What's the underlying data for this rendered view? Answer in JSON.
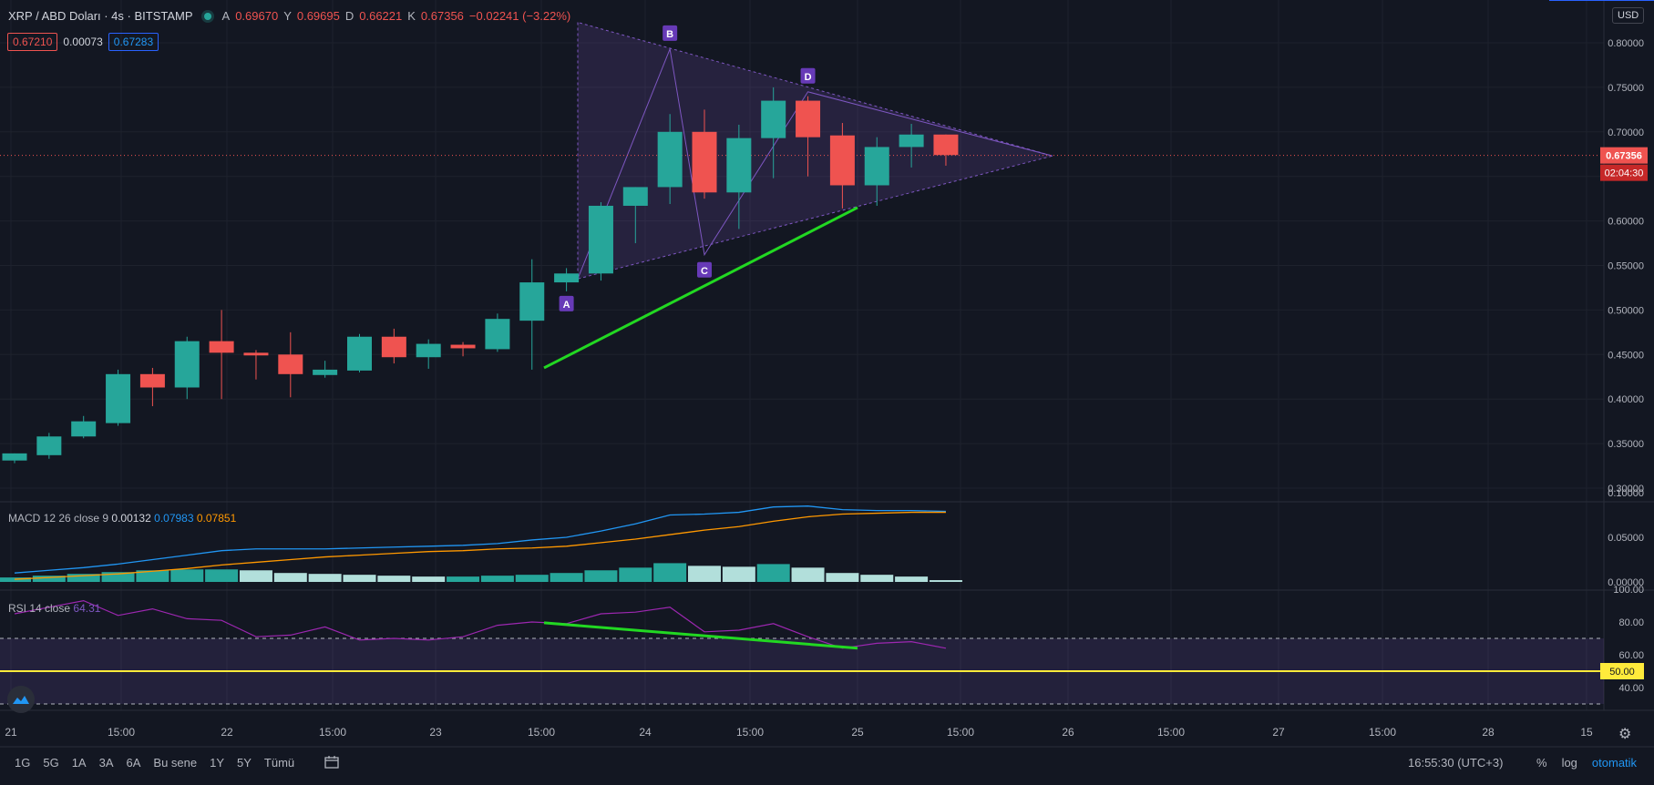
{
  "header": {
    "symbol": "XRP / ABD Doları · 4s · BITSTAMP",
    "o_label": "A",
    "o_value": "0.69670",
    "h_label": "Y",
    "h_value": "0.69695",
    "l_label": "D",
    "l_value": "0.66221",
    "c_label": "K",
    "c_value": "0.67356",
    "change": "−0.02241 (−3.22%)"
  },
  "bid": "0.67210",
  "spread": "0.00073",
  "ask": "0.67283",
  "currency": "USD",
  "current_price_label": "0.67356",
  "countdown": "02:04:30",
  "macd": {
    "label": "MACD 12 26 close 9",
    "v1": "0.00132",
    "v2": "0.07983",
    "v3": "0.07851"
  },
  "rsi": {
    "label": "RSI 14 close",
    "value": "64.31",
    "mid_label": "50.00"
  },
  "colors": {
    "up": "#26a69a",
    "down": "#ef5350",
    "bg": "#131722",
    "pattern": "#7e57c2",
    "trend": "#22d822"
  },
  "timeframes": [
    "1G",
    "5G",
    "1A",
    "3A",
    "6A",
    "Bu sene",
    "1Y",
    "5Y",
    "Tümü"
  ],
  "clock": "16:55:30 (UTC+3)",
  "options": {
    "percent": "%",
    "log": "log",
    "auto": "otomatik"
  },
  "chart_data": {
    "type": "candlestick",
    "x_labels": [
      "21",
      "15:00",
      "22",
      "15:00",
      "23",
      "15:00",
      "24",
      "15:00",
      "25",
      "15:00",
      "26",
      "15:00",
      "27",
      "15:00",
      "28",
      "15"
    ],
    "price_axis": [
      "0.80000",
      "0.75000",
      "0.70000",
      "0.65000",
      "0.60000",
      "0.55000",
      "0.50000",
      "0.45000",
      "0.40000",
      "0.35000",
      "0.30000"
    ],
    "ylim": [
      0.28,
      0.82
    ],
    "candles": [
      {
        "o": 0.331,
        "h": 0.339,
        "l": 0.328,
        "c": 0.339
      },
      {
        "o": 0.337,
        "h": 0.362,
        "l": 0.333,
        "c": 0.358
      },
      {
        "o": 0.358,
        "h": 0.381,
        "l": 0.356,
        "c": 0.375
      },
      {
        "o": 0.373,
        "h": 0.433,
        "l": 0.37,
        "c": 0.428
      },
      {
        "o": 0.428,
        "h": 0.435,
        "l": 0.392,
        "c": 0.413
      },
      {
        "o": 0.413,
        "h": 0.47,
        "l": 0.4,
        "c": 0.465
      },
      {
        "o": 0.465,
        "h": 0.5,
        "l": 0.4,
        "c": 0.452
      },
      {
        "o": 0.452,
        "h": 0.455,
        "l": 0.422,
        "c": 0.449
      },
      {
        "o": 0.45,
        "h": 0.475,
        "l": 0.402,
        "c": 0.428
      },
      {
        "o": 0.427,
        "h": 0.443,
        "l": 0.424,
        "c": 0.433
      },
      {
        "o": 0.432,
        "h": 0.473,
        "l": 0.43,
        "c": 0.47
      },
      {
        "o": 0.47,
        "h": 0.479,
        "l": 0.44,
        "c": 0.447
      },
      {
        "o": 0.447,
        "h": 0.467,
        "l": 0.434,
        "c": 0.462
      },
      {
        "o": 0.461,
        "h": 0.464,
        "l": 0.448,
        "c": 0.457
      },
      {
        "o": 0.456,
        "h": 0.496,
        "l": 0.453,
        "c": 0.49
      },
      {
        "o": 0.488,
        "h": 0.557,
        "l": 0.433,
        "c": 0.531
      },
      {
        "o": 0.531,
        "h": 0.547,
        "l": 0.521,
        "c": 0.541
      },
      {
        "o": 0.541,
        "h": 0.621,
        "l": 0.533,
        "c": 0.617
      },
      {
        "o": 0.617,
        "h": 0.638,
        "l": 0.575,
        "c": 0.638
      },
      {
        "o": 0.638,
        "h": 0.72,
        "l": 0.619,
        "c": 0.7
      },
      {
        "o": 0.7,
        "h": 0.725,
        "l": 0.625,
        "c": 0.632
      },
      {
        "o": 0.632,
        "h": 0.708,
        "l": 0.591,
        "c": 0.693
      },
      {
        "o": 0.693,
        "h": 0.75,
        "l": 0.648,
        "c": 0.735
      },
      {
        "o": 0.735,
        "h": 0.74,
        "l": 0.65,
        "c": 0.694
      },
      {
        "o": 0.696,
        "h": 0.71,
        "l": 0.614,
        "c": 0.64
      },
      {
        "o": 0.64,
        "h": 0.694,
        "l": 0.617,
        "c": 0.683
      },
      {
        "o": 0.683,
        "h": 0.709,
        "l": 0.66,
        "c": 0.697
      },
      {
        "o": 0.697,
        "h": 0.697,
        "l": 0.662,
        "c": 0.674
      }
    ],
    "pattern_points": [
      {
        "label": "A",
        "candle": 16,
        "price": 0.524
      },
      {
        "label": "B",
        "candle": 19,
        "price": 0.793
      },
      {
        "label": "C",
        "candle": 20,
        "price": 0.562
      },
      {
        "label": "D",
        "candle": 23,
        "price": 0.745
      }
    ],
    "macd": {
      "ylim": [
        0,
        0.1
      ],
      "axis": [
        "0.10000",
        "0.05000",
        "0.00000"
      ],
      "macd_line": [
        0.01,
        0.013,
        0.016,
        0.02,
        0.025,
        0.03,
        0.035,
        0.037,
        0.037,
        0.037,
        0.038,
        0.039,
        0.04,
        0.041,
        0.043,
        0.047,
        0.05,
        0.057,
        0.065,
        0.075,
        0.076,
        0.078,
        0.084,
        0.085,
        0.081,
        0.08,
        0.08,
        0.079
      ],
      "signal_line": [
        0.003,
        0.005,
        0.007,
        0.009,
        0.012,
        0.015,
        0.019,
        0.022,
        0.025,
        0.028,
        0.03,
        0.032,
        0.034,
        0.035,
        0.037,
        0.038,
        0.04,
        0.044,
        0.048,
        0.053,
        0.058,
        0.062,
        0.068,
        0.073,
        0.076,
        0.077,
        0.078,
        0.078
      ],
      "histogram": [
        0.005,
        0.007,
        0.009,
        0.011,
        0.013,
        0.014,
        0.014,
        0.013,
        0.01,
        0.009,
        0.008,
        0.007,
        0.006,
        0.006,
        0.007,
        0.008,
        0.01,
        0.013,
        0.016,
        0.021,
        0.018,
        0.017,
        0.02,
        0.016,
        0.01,
        0.008,
        0.006,
        0.002
      ]
    },
    "rsi": {
      "ylim": [
        30,
        100
      ],
      "axis": [
        "100.00",
        "80.00",
        "60.00",
        "40.00"
      ],
      "upper": 70,
      "lower": 30,
      "mid": 50,
      "values": [
        85,
        89,
        93,
        84,
        88,
        82,
        81,
        71,
        72,
        77,
        69,
        70,
        69,
        71,
        78,
        80,
        79,
        85,
        86,
        89,
        74,
        75,
        79,
        71,
        64,
        67,
        68,
        64
      ]
    }
  }
}
